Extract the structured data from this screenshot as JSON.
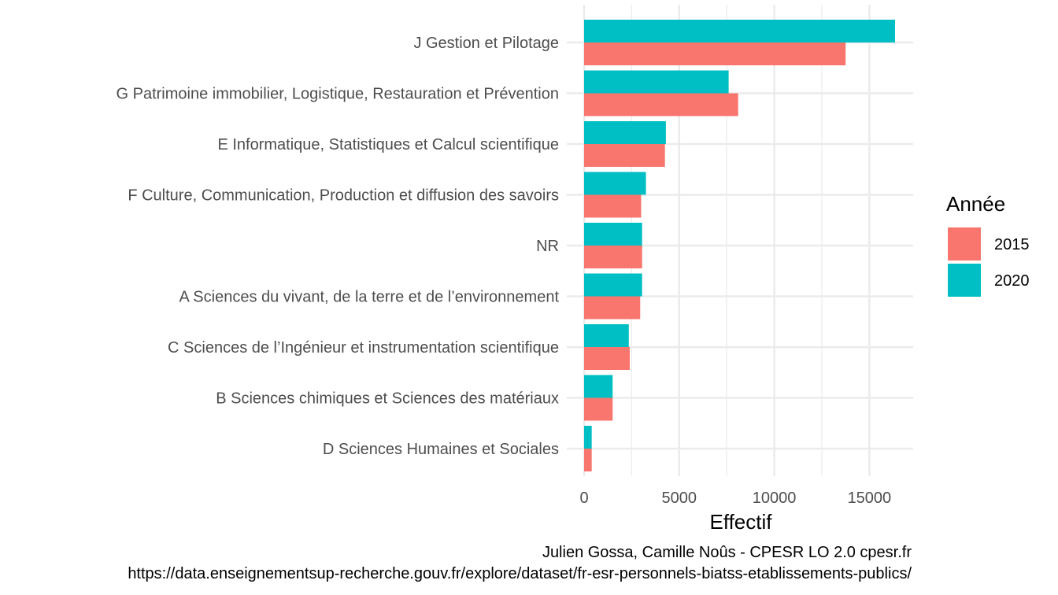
{
  "chart_data": {
    "type": "bar",
    "orientation": "horizontal",
    "categories": [
      "J Gestion et Pilotage",
      "G Patrimoine immobilier, Logistique, Restauration et Prévention",
      "E Informatique, Statistiques et Calcul scientifique",
      "F Culture, Communication, Production et diffusion des savoirs",
      "NR",
      "A Sciences du vivant, de la terre et de l’environnement",
      "C Sciences de l’Ingénieur et  instrumentation scientifique",
      "B Sciences chimiques et Sciences des matériaux",
      "D Sciences Humaines et Sociales"
    ],
    "series": [
      {
        "name": "2015",
        "color": "#F8766D",
        "values": [
          13750,
          8100,
          4250,
          3000,
          3050,
          2950,
          2400,
          1500,
          400
        ]
      },
      {
        "name": "2020",
        "color": "#00BFC4",
        "values": [
          16350,
          7600,
          4300,
          3250,
          3050,
          3050,
          2350,
          1500,
          400
        ]
      }
    ],
    "xlabel": "Effectif",
    "xlim": [
      0,
      17200
    ],
    "xticks": [
      0,
      5000,
      10000,
      15000
    ],
    "xtick_labels": [
      "0",
      "5000",
      "10000",
      "15000"
    ],
    "grid": true,
    "legend": {
      "title": "Année",
      "placement": "right"
    },
    "caption_lines": [
      "Julien Gossa, Camille Noûs - CPESR LO 2.0 cpesr.fr ",
      "https://data.enseignementsup-recherche.gouv.fr/explore/dataset/fr-esr-personnels-biatss-etablissements-publics/"
    ]
  }
}
